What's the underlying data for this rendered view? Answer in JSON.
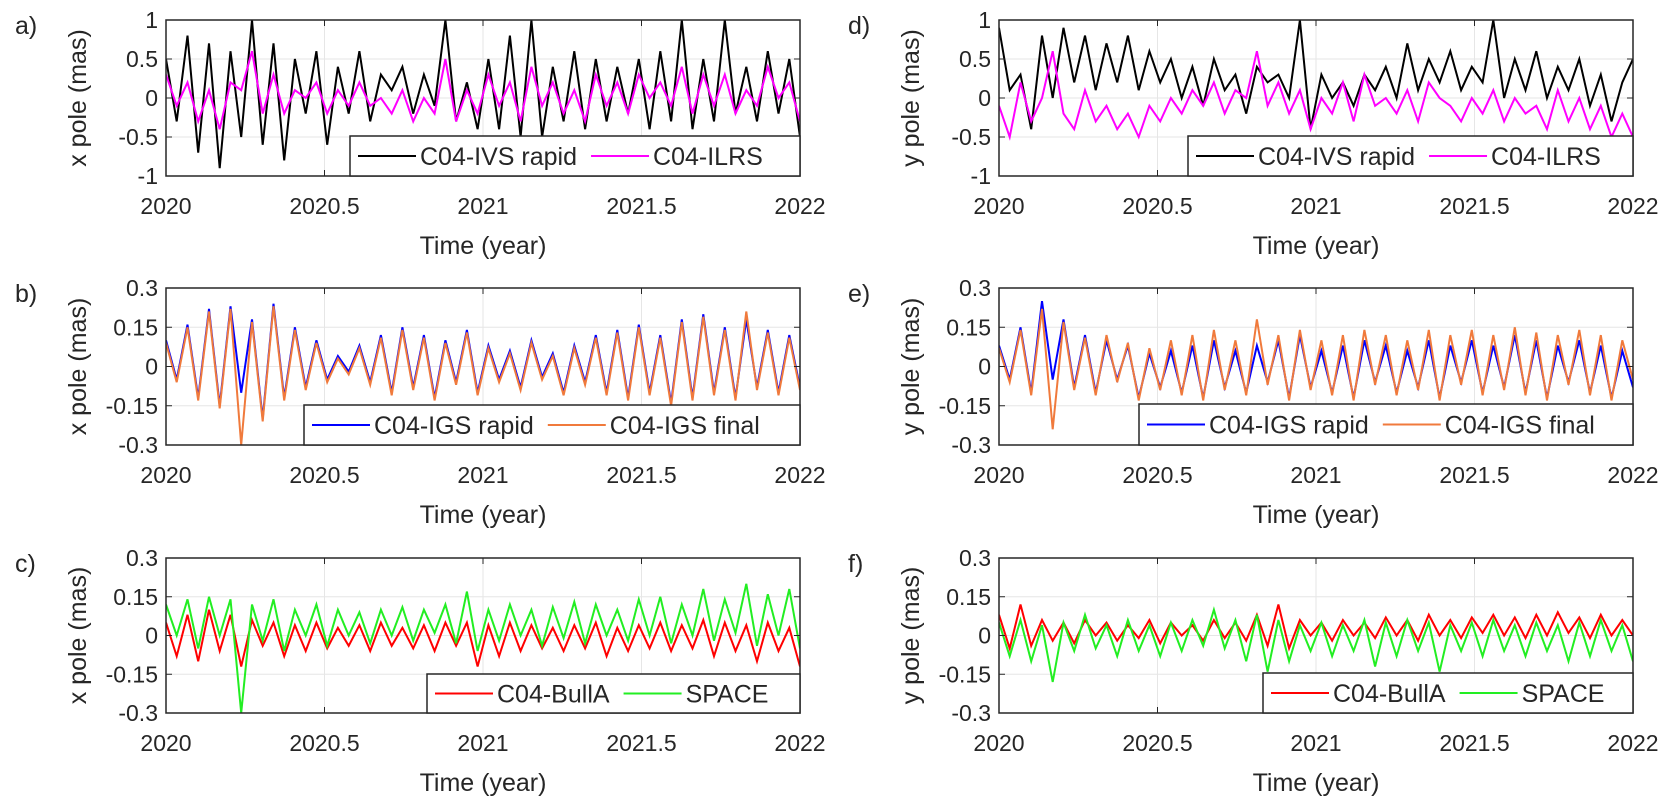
{
  "chart_data": [
    {
      "type": "line",
      "panel_label": "a)",
      "xlabel": "Time (year)",
      "ylabel": "x pole (mas)",
      "xlim": [
        2020,
        2022
      ],
      "ylim": [
        -1,
        1
      ],
      "xticks": [
        "2020",
        "2020.5",
        "2021",
        "2021.5",
        "2022"
      ],
      "yticks": [
        "-1",
        "-0.5",
        "0",
        "0.5",
        "1"
      ],
      "grid": true,
      "legend_position": "bottom-right",
      "series": [
        {
          "name": "C04-IVS rapid",
          "color": "#000000",
          "values": [
            0.5,
            -0.3,
            0.8,
            -0.7,
            0.7,
            -0.9,
            0.6,
            -0.5,
            1.0,
            -0.6,
            0.7,
            -0.8,
            0.5,
            -0.2,
            0.6,
            -0.6,
            0.4,
            -0.2,
            0.6,
            -0.3,
            0.3,
            0.1,
            0.4,
            -0.2,
            0.3,
            -0.1,
            1.0,
            -0.3,
            0.2,
            -0.4,
            0.5,
            -0.4,
            0.8,
            -0.5,
            1.0,
            -0.5,
            0.4,
            -0.3,
            0.6,
            -0.4,
            0.5,
            -0.3,
            0.4,
            -0.2,
            0.5,
            -0.4,
            0.6,
            -0.3,
            1.0,
            -0.4,
            0.5,
            -0.3,
            1.0,
            -0.2,
            0.4,
            -0.3,
            0.6,
            -0.2,
            0.5,
            -0.5
          ]
        },
        {
          "name": "C04-ILRS",
          "color": "#ff00ff",
          "values": [
            0.3,
            -0.1,
            0.2,
            -0.3,
            0.1,
            -0.4,
            0.2,
            0.1,
            0.6,
            -0.2,
            0.3,
            -0.2,
            0.1,
            0.0,
            0.2,
            -0.2,
            0.1,
            -0.1,
            0.2,
            -0.1,
            0.0,
            -0.2,
            0.1,
            -0.3,
            0.0,
            -0.2,
            0.5,
            -0.3,
            0.1,
            -0.2,
            0.3,
            -0.1,
            0.2,
            -0.3,
            0.4,
            -0.1,
            0.2,
            -0.2,
            0.1,
            -0.3,
            0.3,
            -0.1,
            0.2,
            -0.2,
            0.3,
            0.0,
            0.2,
            -0.1,
            0.4,
            -0.2,
            0.3,
            -0.1,
            0.3,
            -0.2,
            0.1,
            -0.1,
            0.4,
            0.0,
            0.2,
            -0.3
          ]
        }
      ]
    },
    {
      "type": "line",
      "panel_label": "b)",
      "xlabel": "Time (year)",
      "ylabel": "x pole (mas)",
      "xlim": [
        2020,
        2022
      ],
      "ylim": [
        -0.3,
        0.3
      ],
      "xticks": [
        "2020",
        "2020.5",
        "2021",
        "2021.5",
        "2022"
      ],
      "yticks": [
        "-0.3",
        "-0.15",
        "0",
        "0.15",
        "0.3"
      ],
      "grid": true,
      "legend_position": "bottom-right",
      "series": [
        {
          "name": "C04-IGS rapid",
          "color": "#0000ff",
          "values": [
            0.1,
            -0.05,
            0.16,
            -0.12,
            0.22,
            -0.15,
            0.23,
            -0.1,
            0.18,
            -0.2,
            0.24,
            -0.12,
            0.15,
            -0.08,
            0.1,
            -0.05,
            0.04,
            -0.02,
            0.08,
            -0.06,
            0.12,
            -0.1,
            0.15,
            -0.08,
            0.12,
            -0.12,
            0.1,
            -0.06,
            0.14,
            -0.1,
            0.08,
            -0.05,
            0.06,
            -0.08,
            0.1,
            -0.04,
            0.05,
            -0.1,
            0.08,
            -0.06,
            0.12,
            -0.1,
            0.14,
            -0.12,
            0.16,
            -0.1,
            0.12,
            -0.14,
            0.18,
            -0.12,
            0.2,
            -0.1,
            0.15,
            -0.12,
            0.18,
            -0.08,
            0.14,
            -0.1,
            0.12,
            -0.08
          ]
        },
        {
          "name": "C04-IGS final",
          "color": "#f07a3c",
          "values": [
            0.09,
            -0.06,
            0.15,
            -0.13,
            0.21,
            -0.16,
            0.22,
            -0.3,
            0.17,
            -0.21,
            0.23,
            -0.13,
            0.14,
            -0.09,
            0.09,
            -0.06,
            0.03,
            -0.03,
            0.07,
            -0.07,
            0.11,
            -0.11,
            0.14,
            -0.09,
            0.11,
            -0.13,
            0.09,
            -0.07,
            0.13,
            -0.11,
            0.07,
            -0.06,
            0.05,
            -0.09,
            0.09,
            -0.05,
            0.04,
            -0.11,
            0.07,
            -0.07,
            0.11,
            -0.11,
            0.13,
            -0.13,
            0.15,
            -0.11,
            0.11,
            -0.15,
            0.17,
            -0.13,
            0.19,
            -0.11,
            0.14,
            -0.13,
            0.21,
            -0.09,
            0.13,
            -0.11,
            0.11,
            -0.09
          ]
        }
      ]
    },
    {
      "type": "line",
      "panel_label": "c)",
      "xlabel": "Time (year)",
      "ylabel": "x pole (mas)",
      "xlim": [
        2020,
        2022
      ],
      "ylim": [
        -0.3,
        0.3
      ],
      "xticks": [
        "2020",
        "2020.5",
        "2021",
        "2021.5",
        "2022"
      ],
      "yticks": [
        "-0.3",
        "-0.15",
        "0",
        "0.15",
        "0.3"
      ],
      "grid": true,
      "legend_position": "bottom-right",
      "series": [
        {
          "name": "C04-BullA",
          "color": "#ff0000",
          "values": [
            0.05,
            -0.08,
            0.08,
            -0.1,
            0.1,
            -0.06,
            0.08,
            -0.12,
            0.06,
            -0.04,
            0.05,
            -0.08,
            0.04,
            -0.06,
            0.05,
            -0.05,
            0.03,
            -0.04,
            0.04,
            -0.06,
            0.05,
            -0.04,
            0.03,
            -0.05,
            0.04,
            -0.06,
            0.05,
            -0.04,
            0.05,
            -0.12,
            0.04,
            -0.08,
            0.05,
            -0.06,
            0.04,
            -0.05,
            0.03,
            -0.06,
            0.04,
            -0.05,
            0.05,
            -0.08,
            0.03,
            -0.06,
            0.04,
            -0.05,
            0.05,
            -0.06,
            0.04,
            -0.05,
            0.06,
            -0.08,
            0.05,
            -0.06,
            0.04,
            -0.1,
            0.05,
            -0.06,
            0.03,
            -0.12
          ]
        },
        {
          "name": "SPACE",
          "color": "#22ee22",
          "values": [
            0.12,
            0.0,
            0.14,
            -0.05,
            0.15,
            0.0,
            0.14,
            -0.3,
            0.12,
            -0.02,
            0.14,
            -0.06,
            0.1,
            0.0,
            0.12,
            -0.04,
            0.1,
            0.0,
            0.09,
            -0.03,
            0.1,
            0.0,
            0.11,
            -0.02,
            0.1,
            0.01,
            0.12,
            -0.03,
            0.17,
            -0.06,
            0.1,
            -0.02,
            0.12,
            0.0,
            0.1,
            -0.04,
            0.11,
            -0.01,
            0.13,
            -0.03,
            0.12,
            0.0,
            0.1,
            -0.02,
            0.14,
            0.0,
            0.15,
            -0.03,
            0.12,
            0.0,
            0.18,
            -0.02,
            0.14,
            0.01,
            0.2,
            -0.04,
            0.16,
            0.0,
            0.18,
            -0.05
          ]
        }
      ]
    },
    {
      "type": "line",
      "panel_label": "d)",
      "xlabel": "Time (year)",
      "ylabel": "y pole (mas)",
      "xlim": [
        2020,
        2022
      ],
      "ylim": [
        -1,
        1
      ],
      "xticks": [
        "2020",
        "2020.5",
        "2021",
        "2021.5",
        "2022"
      ],
      "yticks": [
        "-1",
        "-0.5",
        "0",
        "0.5",
        "1"
      ],
      "grid": true,
      "legend_position": "bottom-right",
      "series": [
        {
          "name": "C04-IVS rapid",
          "color": "#000000",
          "values": [
            0.9,
            0.1,
            0.3,
            -0.4,
            0.8,
            0.0,
            0.9,
            0.2,
            0.8,
            0.1,
            0.7,
            0.2,
            0.8,
            0.1,
            0.6,
            0.2,
            0.5,
            0.0,
            0.4,
            -0.1,
            0.5,
            0.1,
            0.3,
            -0.2,
            0.4,
            0.2,
            0.3,
            0.0,
            1.0,
            -0.4,
            0.3,
            0.0,
            0.2,
            -0.1,
            0.3,
            0.1,
            0.4,
            0.0,
            0.7,
            0.1,
            0.5,
            0.2,
            0.6,
            0.1,
            0.4,
            0.2,
            1.0,
            0.0,
            0.5,
            0.1,
            0.6,
            0.0,
            0.4,
            0.1,
            0.5,
            -0.1,
            0.3,
            -0.3,
            0.2,
            0.5
          ]
        },
        {
          "name": "C04-ILRS",
          "color": "#ff00ff",
          "values": [
            -0.1,
            -0.5,
            0.2,
            -0.3,
            0.0,
            0.6,
            -0.2,
            -0.4,
            0.1,
            -0.3,
            -0.1,
            -0.4,
            -0.2,
            -0.5,
            -0.1,
            -0.3,
            0.0,
            -0.2,
            0.1,
            -0.1,
            0.2,
            -0.2,
            0.1,
            0.0,
            0.6,
            -0.1,
            0.2,
            -0.2,
            0.1,
            -0.4,
            0.0,
            -0.2,
            0.2,
            -0.3,
            0.3,
            -0.1,
            0.0,
            -0.2,
            0.1,
            -0.3,
            0.2,
            0.0,
            -0.1,
            -0.3,
            0.0,
            -0.2,
            0.1,
            -0.3,
            0.0,
            -0.2,
            -0.1,
            -0.4,
            0.1,
            -0.3,
            0.0,
            -0.4,
            -0.1,
            -0.5,
            -0.2,
            -0.5
          ]
        }
      ]
    },
    {
      "type": "line",
      "panel_label": "e)",
      "xlabel": "Time (year)",
      "ylabel": "y pole (mas)",
      "xlim": [
        2020,
        2022
      ],
      "ylim": [
        -0.3,
        0.3
      ],
      "xticks": [
        "2020",
        "2020.5",
        "2021",
        "2021.5",
        "2022"
      ],
      "yticks": [
        "-0.3",
        "-0.15",
        "0",
        "0.15",
        "0.3"
      ],
      "grid": true,
      "legend_position": "bottom-right",
      "series": [
        {
          "name": "C04-IGS rapid",
          "color": "#0000ff",
          "values": [
            0.08,
            -0.05,
            0.15,
            -0.1,
            0.25,
            -0.05,
            0.18,
            -0.08,
            0.12,
            -0.1,
            0.1,
            -0.05,
            0.08,
            -0.12,
            0.05,
            -0.08,
            0.06,
            -0.1,
            0.08,
            -0.12,
            0.1,
            -0.08,
            0.06,
            -0.1,
            0.08,
            -0.06,
            0.1,
            -0.12,
            0.12,
            -0.08,
            0.06,
            -0.1,
            0.08,
            -0.12,
            0.1,
            -0.06,
            0.08,
            -0.1,
            0.06,
            -0.08,
            0.1,
            -0.12,
            0.08,
            -0.06,
            0.1,
            -0.1,
            0.08,
            -0.08,
            0.12,
            -0.1,
            0.1,
            -0.12,
            0.08,
            -0.06,
            0.1,
            -0.1,
            0.08,
            -0.12,
            0.06,
            -0.08
          ]
        },
        {
          "name": "C04-IGS final",
          "color": "#f07a3c",
          "values": [
            0.07,
            -0.06,
            0.14,
            -0.11,
            0.22,
            -0.24,
            0.17,
            -0.09,
            0.11,
            -0.11,
            0.12,
            -0.06,
            0.09,
            -0.13,
            0.07,
            -0.09,
            0.1,
            -0.11,
            0.12,
            -0.13,
            0.14,
            -0.09,
            0.1,
            -0.11,
            0.18,
            -0.07,
            0.12,
            -0.13,
            0.14,
            -0.09,
            0.1,
            -0.11,
            0.12,
            -0.13,
            0.14,
            -0.07,
            0.12,
            -0.11,
            0.1,
            -0.09,
            0.14,
            -0.13,
            0.12,
            -0.07,
            0.14,
            -0.11,
            0.12,
            -0.09,
            0.15,
            -0.11,
            0.13,
            -0.13,
            0.12,
            -0.07,
            0.14,
            -0.11,
            0.12,
            -0.13,
            0.1,
            -0.05
          ]
        }
      ]
    },
    {
      "type": "line",
      "panel_label": "f)",
      "xlabel": "Time (year)",
      "ylabel": "y pole (mas)",
      "xlim": [
        2020,
        2022
      ],
      "ylim": [
        -0.3,
        0.3
      ],
      "xticks": [
        "2020",
        "2020.5",
        "2021",
        "2021.5",
        "2022"
      ],
      "yticks": [
        "-0.3",
        "-0.15",
        "0",
        "0.15",
        "0.3"
      ],
      "grid": true,
      "legend_position": "bottom-right",
      "series": [
        {
          "name": "C04-BullA",
          "color": "#ff0000",
          "values": [
            0.08,
            -0.05,
            0.12,
            -0.04,
            0.06,
            -0.02,
            0.05,
            -0.03,
            0.06,
            0.0,
            0.05,
            -0.02,
            0.04,
            -0.01,
            0.06,
            -0.03,
            0.05,
            0.0,
            0.04,
            -0.02,
            0.06,
            -0.01,
            0.05,
            -0.02,
            0.08,
            -0.04,
            0.12,
            -0.05,
            0.06,
            0.0,
            0.05,
            -0.02,
            0.06,
            0.0,
            0.05,
            -0.01,
            0.07,
            0.0,
            0.06,
            -0.02,
            0.08,
            0.0,
            0.06,
            -0.01,
            0.07,
            0.01,
            0.08,
            0.0,
            0.07,
            -0.01,
            0.08,
            0.0,
            0.09,
            0.01,
            0.07,
            -0.01,
            0.08,
            0.0,
            0.06,
            0.0
          ]
        },
        {
          "name": "SPACE",
          "color": "#22ee22",
          "values": [
            0.05,
            -0.08,
            0.06,
            -0.1,
            0.04,
            -0.18,
            0.05,
            -0.06,
            0.08,
            -0.05,
            0.04,
            -0.08,
            0.06,
            -0.06,
            0.04,
            -0.08,
            0.05,
            -0.06,
            0.06,
            -0.04,
            0.1,
            -0.05,
            0.06,
            -0.1,
            0.08,
            -0.14,
            0.06,
            -0.1,
            0.04,
            -0.06,
            0.05,
            -0.08,
            0.04,
            -0.06,
            0.06,
            -0.12,
            0.05,
            -0.08,
            0.06,
            -0.06,
            0.05,
            -0.14,
            0.04,
            -0.06,
            0.05,
            -0.08,
            0.06,
            -0.06,
            0.04,
            -0.08,
            0.05,
            -0.06,
            0.04,
            -0.1,
            0.05,
            -0.08,
            0.06,
            -0.06,
            0.04,
            -0.1
          ]
        }
      ]
    }
  ]
}
